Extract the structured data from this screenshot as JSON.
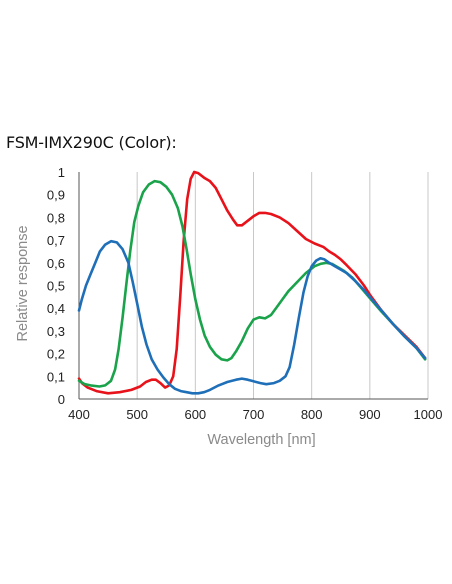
{
  "chart_data": {
    "type": "line",
    "title": "FSM-IMX290C (Color):",
    "xlabel": "Wavelength [nm]",
    "ylabel": "Relative response",
    "xlim": [
      400,
      1000
    ],
    "ylim": [
      0,
      1
    ],
    "x_ticks": [
      400,
      500,
      600,
      700,
      800,
      900,
      1000
    ],
    "y_ticks": [
      0,
      0.1,
      0.2,
      0.3,
      0.4,
      0.5,
      0.6,
      0.7,
      0.8,
      0.9,
      1.0
    ],
    "y_tick_labels": [
      "0",
      "0,1",
      "0,2",
      "0,3",
      "0,4",
      "0,5",
      "0,6",
      "0,7",
      "0,8",
      "0,9",
      "1"
    ],
    "grid": {
      "vertical": true,
      "horizontal": false
    },
    "series": [
      {
        "color": "#e8121b",
        "points": [
          [
            400,
            0.09
          ],
          [
            405,
            0.07
          ],
          [
            415,
            0.05
          ],
          [
            430,
            0.035
          ],
          [
            450,
            0.025
          ],
          [
            470,
            0.03
          ],
          [
            490,
            0.04
          ],
          [
            505,
            0.055
          ],
          [
            515,
            0.075
          ],
          [
            525,
            0.085
          ],
          [
            532,
            0.085
          ],
          [
            540,
            0.07
          ],
          [
            548,
            0.05
          ],
          [
            555,
            0.06
          ],
          [
            562,
            0.1
          ],
          [
            568,
            0.22
          ],
          [
            574,
            0.45
          ],
          [
            580,
            0.7
          ],
          [
            586,
            0.88
          ],
          [
            592,
            0.97
          ],
          [
            598,
            1.0
          ],
          [
            605,
            0.995
          ],
          [
            615,
            0.975
          ],
          [
            625,
            0.96
          ],
          [
            635,
            0.93
          ],
          [
            645,
            0.88
          ],
          [
            655,
            0.83
          ],
          [
            665,
            0.79
          ],
          [
            672,
            0.765
          ],
          [
            680,
            0.765
          ],
          [
            690,
            0.785
          ],
          [
            700,
            0.805
          ],
          [
            710,
            0.82
          ],
          [
            720,
            0.82
          ],
          [
            730,
            0.815
          ],
          [
            745,
            0.8
          ],
          [
            760,
            0.775
          ],
          [
            775,
            0.74
          ],
          [
            790,
            0.705
          ],
          [
            805,
            0.685
          ],
          [
            820,
            0.67
          ],
          [
            830,
            0.65
          ],
          [
            840,
            0.635
          ],
          [
            850,
            0.615
          ],
          [
            860,
            0.59
          ],
          [
            875,
            0.55
          ],
          [
            890,
            0.5
          ],
          [
            900,
            0.46
          ],
          [
            920,
            0.39
          ],
          [
            940,
            0.33
          ],
          [
            960,
            0.28
          ],
          [
            980,
            0.23
          ],
          [
            995,
            0.18
          ]
        ]
      },
      {
        "color": "#1aa34a",
        "points": [
          [
            400,
            0.08
          ],
          [
            410,
            0.065
          ],
          [
            420,
            0.06
          ],
          [
            435,
            0.055
          ],
          [
            445,
            0.06
          ],
          [
            455,
            0.08
          ],
          [
            462,
            0.13
          ],
          [
            468,
            0.22
          ],
          [
            475,
            0.36
          ],
          [
            482,
            0.52
          ],
          [
            488,
            0.65
          ],
          [
            495,
            0.78
          ],
          [
            502,
            0.85
          ],
          [
            510,
            0.91
          ],
          [
            520,
            0.945
          ],
          [
            530,
            0.96
          ],
          [
            540,
            0.955
          ],
          [
            550,
            0.935
          ],
          [
            560,
            0.9
          ],
          [
            570,
            0.84
          ],
          [
            578,
            0.76
          ],
          [
            585,
            0.66
          ],
          [
            592,
            0.55
          ],
          [
            600,
            0.44
          ],
          [
            608,
            0.35
          ],
          [
            616,
            0.28
          ],
          [
            625,
            0.23
          ],
          [
            635,
            0.195
          ],
          [
            645,
            0.175
          ],
          [
            655,
            0.17
          ],
          [
            662,
            0.18
          ],
          [
            670,
            0.21
          ],
          [
            680,
            0.255
          ],
          [
            690,
            0.31
          ],
          [
            700,
            0.35
          ],
          [
            710,
            0.36
          ],
          [
            720,
            0.355
          ],
          [
            730,
            0.37
          ],
          [
            740,
            0.405
          ],
          [
            750,
            0.44
          ],
          [
            760,
            0.475
          ],
          [
            775,
            0.515
          ],
          [
            790,
            0.555
          ],
          [
            805,
            0.585
          ],
          [
            815,
            0.595
          ],
          [
            825,
            0.6
          ],
          [
            835,
            0.595
          ],
          [
            845,
            0.58
          ],
          [
            855,
            0.565
          ],
          [
            870,
            0.535
          ],
          [
            885,
            0.49
          ],
          [
            900,
            0.445
          ],
          [
            920,
            0.385
          ],
          [
            940,
            0.33
          ],
          [
            960,
            0.275
          ],
          [
            980,
            0.225
          ],
          [
            995,
            0.175
          ]
        ]
      },
      {
        "color": "#1f6fb8",
        "points": [
          [
            400,
            0.39
          ],
          [
            405,
            0.44
          ],
          [
            412,
            0.5
          ],
          [
            420,
            0.55
          ],
          [
            428,
            0.6
          ],
          [
            436,
            0.65
          ],
          [
            445,
            0.68
          ],
          [
            455,
            0.695
          ],
          [
            465,
            0.69
          ],
          [
            475,
            0.66
          ],
          [
            485,
            0.6
          ],
          [
            492,
            0.52
          ],
          [
            500,
            0.42
          ],
          [
            508,
            0.32
          ],
          [
            516,
            0.24
          ],
          [
            525,
            0.175
          ],
          [
            535,
            0.13
          ],
          [
            545,
            0.095
          ],
          [
            555,
            0.065
          ],
          [
            565,
            0.045
          ],
          [
            575,
            0.035
          ],
          [
            585,
            0.03
          ],
          [
            595,
            0.025
          ],
          [
            605,
            0.025
          ],
          [
            615,
            0.03
          ],
          [
            625,
            0.04
          ],
          [
            640,
            0.06
          ],
          [
            655,
            0.075
          ],
          [
            670,
            0.085
          ],
          [
            680,
            0.09
          ],
          [
            690,
            0.085
          ],
          [
            700,
            0.078
          ],
          [
            712,
            0.07
          ],
          [
            722,
            0.065
          ],
          [
            735,
            0.07
          ],
          [
            745,
            0.08
          ],
          [
            755,
            0.1
          ],
          [
            762,
            0.14
          ],
          [
            770,
            0.24
          ],
          [
            778,
            0.36
          ],
          [
            786,
            0.47
          ],
          [
            793,
            0.54
          ],
          [
            800,
            0.585
          ],
          [
            808,
            0.61
          ],
          [
            815,
            0.62
          ],
          [
            822,
            0.615
          ],
          [
            830,
            0.6
          ],
          [
            840,
            0.585
          ],
          [
            850,
            0.57
          ],
          [
            860,
            0.555
          ],
          [
            875,
            0.52
          ],
          [
            890,
            0.48
          ],
          [
            900,
            0.45
          ],
          [
            920,
            0.39
          ],
          [
            940,
            0.33
          ],
          [
            960,
            0.275
          ],
          [
            980,
            0.225
          ],
          [
            995,
            0.18
          ]
        ]
      }
    ]
  }
}
